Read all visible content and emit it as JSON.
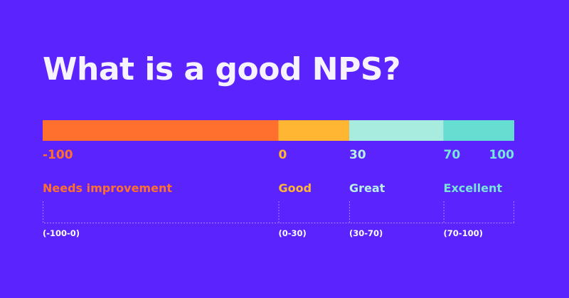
{
  "chart_data": {
    "type": "bar",
    "title": "What is a good NPS?",
    "xlim": [
      -100,
      100
    ],
    "ticks": [
      "-100",
      "0",
      "30",
      "70",
      "100"
    ],
    "segments": [
      {
        "name": "Needs improvement",
        "range_label": "(-100-0)",
        "start": -100,
        "end": 0,
        "color": "#ff6f2e",
        "label_color": "#ff6f2e",
        "tick_color": "#ff6f2e"
      },
      {
        "name": "Good",
        "range_label": "(0-30)",
        "start": 0,
        "end": 30,
        "color": "#ffb733",
        "label_color": "#ffb733",
        "tick_color": "#ffb733"
      },
      {
        "name": "Great",
        "range_label": "(30-70)",
        "start": 30,
        "end": 70,
        "color": "#a8ece0",
        "label_color": "#b9eee6",
        "tick_color": "#b9eee6"
      },
      {
        "name": "Excellent",
        "range_label": "(70-100)",
        "start": 70,
        "end": 100,
        "color": "#65ddd0",
        "label_color": "#79e5da",
        "tick_color": "#79e5da"
      }
    ],
    "end_tick_color": "#79e5da"
  }
}
